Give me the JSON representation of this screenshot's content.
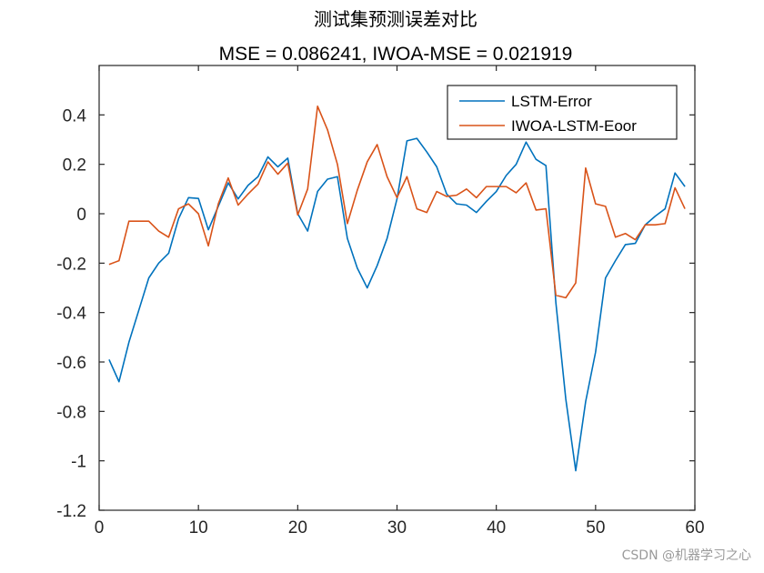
{
  "chart_data": {
    "type": "line",
    "title": "测试集预测误差对比",
    "subtitle": "MSE = 0.086241, IWOA-MSE = 0.021919",
    "xlabel": "",
    "ylabel": "",
    "xlim": [
      0,
      60
    ],
    "ylim": [
      -1.2,
      0.6
    ],
    "xticks": [
      0,
      10,
      20,
      30,
      40,
      50,
      60
    ],
    "xtick_labels": [
      "0",
      "10",
      "20",
      "30",
      "40",
      "50",
      "60"
    ],
    "yticks": [
      -1.2,
      -1,
      -0.8,
      -0.6,
      -0.4,
      -0.2,
      0,
      0.2,
      0.4
    ],
    "ytick_labels": [
      "-1.2",
      "-1",
      "-0.8",
      "-0.6",
      "-0.4",
      "-0.2",
      "0",
      "0.2",
      "0.4"
    ],
    "legend_position": "top-right",
    "x": [
      1,
      2,
      3,
      4,
      5,
      6,
      7,
      8,
      9,
      10,
      11,
      12,
      13,
      14,
      15,
      16,
      17,
      18,
      19,
      20,
      21,
      22,
      23,
      24,
      25,
      26,
      27,
      28,
      29,
      30,
      31,
      32,
      33,
      34,
      35,
      36,
      37,
      38,
      39,
      40,
      41,
      42,
      43,
      44,
      45,
      46,
      47,
      48,
      49,
      50,
      51,
      52,
      53,
      54,
      55,
      56,
      57,
      58,
      59
    ],
    "series": [
      {
        "name": "LSTM-Error",
        "color": "#0072BD",
        "values": [
          -0.59,
          -0.68,
          -0.52,
          -0.39,
          -0.26,
          -0.2,
          -0.16,
          -0.02,
          0.065,
          0.062,
          -0.065,
          0.03,
          0.125,
          0.06,
          0.115,
          0.15,
          0.23,
          0.19,
          0.225,
          0.0,
          -0.07,
          0.09,
          0.14,
          0.15,
          -0.1,
          -0.22,
          -0.3,
          -0.21,
          -0.1,
          0.06,
          0.295,
          0.305,
          0.25,
          0.19,
          0.08,
          0.04,
          0.035,
          0.005,
          0.05,
          0.09,
          0.155,
          0.2,
          0.29,
          0.22,
          0.195,
          -0.36,
          -0.75,
          -1.04,
          -0.76,
          -0.56,
          -0.26,
          -0.19,
          -0.125,
          -0.12,
          -0.045,
          -0.01,
          0.02,
          0.165,
          0.11
        ]
      },
      {
        "name": "IWOA-LSTM-Eoor",
        "color": "#D95319",
        "values": [
          -0.205,
          -0.19,
          -0.03,
          -0.03,
          -0.03,
          -0.07,
          -0.095,
          0.02,
          0.04,
          0.0,
          -0.13,
          0.04,
          0.145,
          0.035,
          0.08,
          0.12,
          0.21,
          0.16,
          0.205,
          -0.005,
          0.1,
          0.435,
          0.34,
          0.2,
          -0.04,
          0.095,
          0.21,
          0.28,
          0.15,
          0.065,
          0.15,
          0.02,
          0.005,
          0.09,
          0.07,
          0.075,
          0.1,
          0.065,
          0.11,
          0.11,
          0.11,
          0.085,
          0.125,
          0.015,
          0.02,
          -0.33,
          -0.34,
          -0.28,
          0.185,
          0.04,
          0.03,
          -0.095,
          -0.08,
          -0.105,
          -0.045,
          -0.045,
          -0.04,
          0.105,
          0.02
        ]
      }
    ]
  },
  "watermark": "CSDN @机器学习之心"
}
